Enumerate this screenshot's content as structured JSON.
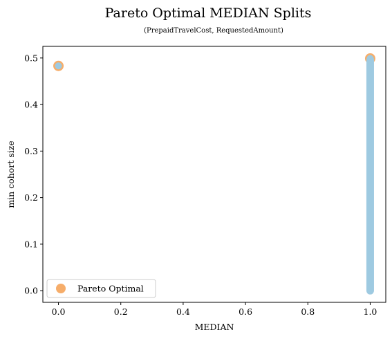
{
  "chart_data": {
    "type": "scatter",
    "title": "Pareto Optimal MEDIAN Splits",
    "subtitle": "(PrepaidTravelCost, RequestedAmount)",
    "xlabel": "MEDIAN",
    "ylabel": "min cohort size",
    "xlim": [
      -0.05,
      1.05
    ],
    "ylim": [
      -0.025,
      0.525
    ],
    "xticks": [
      0.0,
      0.2,
      0.4,
      0.6,
      0.8,
      1.0
    ],
    "xtick_labels": [
      "0.0",
      "0.2",
      "0.4",
      "0.6",
      "0.8",
      "1.0"
    ],
    "yticks": [
      0.0,
      0.1,
      0.2,
      0.3,
      0.4,
      0.5
    ],
    "ytick_labels": [
      "0.0",
      "0.1",
      "0.2",
      "0.3",
      "0.4",
      "0.5"
    ],
    "grid": false,
    "legend": {
      "placement": "lower-left",
      "entries": [
        "Pareto Optimal"
      ]
    },
    "series": [
      {
        "role": "all-splits",
        "color": "#9ecae1",
        "points": [
          [
            0.0,
            0.483
          ],
          [
            1.0,
            0.499
          ]
        ],
        "column_x": 1.0,
        "column_y_range": [
          0.0,
          0.497
        ]
      },
      {
        "role": "pareto-optimal",
        "name": "Pareto Optimal",
        "color": "#f6ad6a",
        "points": [
          [
            0.0,
            0.483
          ],
          [
            1.0,
            0.499
          ]
        ]
      }
    ]
  }
}
